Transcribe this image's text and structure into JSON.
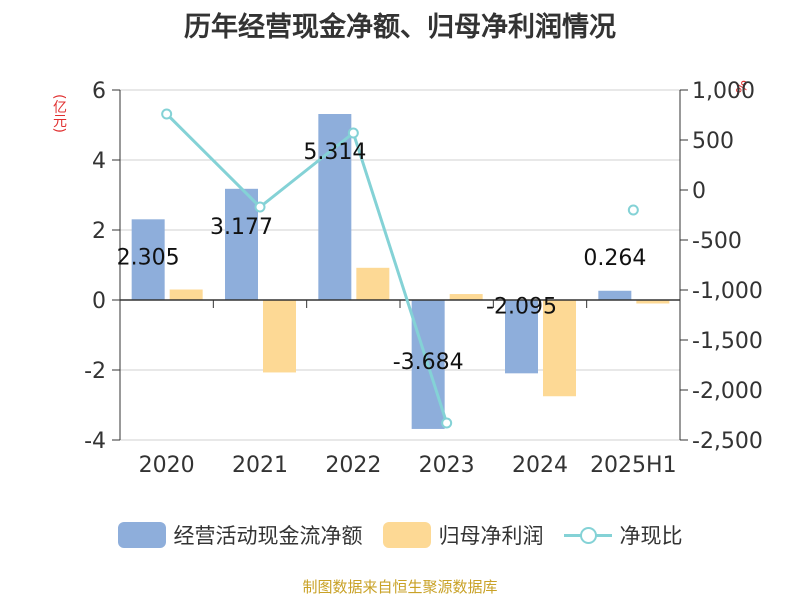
{
  "chart_data": {
    "type": "bar",
    "title": "历年经营现金净额、归母净利润情况",
    "categories": [
      "2020",
      "2021",
      "2022",
      "2023",
      "2024",
      "2025H1"
    ],
    "left_axis": {
      "label": "(亿元)",
      "range": [
        -4,
        6
      ],
      "ticks": [
        "-4",
        "-2",
        "0",
        "2",
        "4",
        "6"
      ]
    },
    "right_axis": {
      "label": "%",
      "range": [
        -2500,
        1000
      ],
      "ticks": [
        "-2,500",
        "-2,000",
        "-1,500",
        "-1,000",
        "-500",
        "0",
        "500",
        "1,000"
      ]
    },
    "series": [
      {
        "name": "经营活动现金流净额",
        "type": "bar",
        "axis": "left",
        "color": "#8eaedb",
        "values": [
          2.305,
          3.177,
          5.314,
          -3.684,
          -2.095,
          0.264
        ],
        "labels": [
          "2.305",
          "3.177",
          "5.314",
          "-3.684",
          "-2.095",
          "0.264"
        ]
      },
      {
        "name": "归母净利润",
        "type": "bar",
        "axis": "left",
        "color": "#fdd995",
        "values": [
          0.3,
          -2.07,
          0.92,
          0.17,
          -2.75,
          -0.1
        ]
      },
      {
        "name": "净现比",
        "type": "line",
        "axis": "right",
        "color": "#84d2d6",
        "values": [
          760,
          -170,
          570,
          -2330,
          null,
          -200
        ]
      }
    ],
    "legend": "bottom",
    "grid": true
  },
  "source": "制图数据来自恒生聚源数据库"
}
